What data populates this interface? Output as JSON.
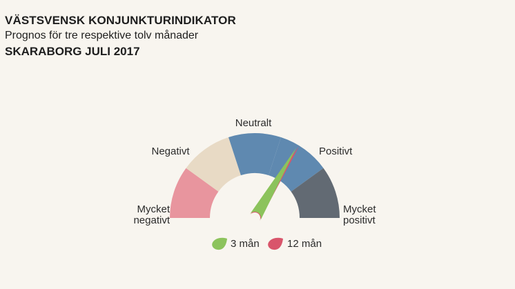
{
  "title": "VÄSTSVENSK KONJUNKTURINDIKATOR",
  "subtitle": "Prognos för tre respektive tolv månader",
  "region": "SKARABORG JULI 2017",
  "chart_data": {
    "type": "gauge",
    "segments": [
      {
        "label_lines": [
          "Mycket",
          "negativt"
        ],
        "color": "#e8959e"
      },
      {
        "label_lines": [
          "Negativt"
        ],
        "color": "#e8dac5"
      },
      {
        "label_lines": [
          "Neutralt"
        ],
        "color": "#5f89b0"
      },
      {
        "label_lines": [
          "Positivt"
        ],
        "color": "#5f89b0"
      },
      {
        "label_lines": [
          "Mycket",
          "positivt"
        ],
        "color": "#626a73"
      }
    ],
    "range": [
      0,
      5
    ],
    "needles": [
      {
        "name": "12 mån",
        "value": 3.38,
        "color": "#d9556b"
      },
      {
        "name": "3 mån",
        "value": 3.35,
        "color": "#8cc35c"
      }
    ],
    "legend": [
      {
        "label": "3 mån",
        "color": "#8cc35c"
      },
      {
        "label": "12 mån",
        "color": "#d9556b"
      }
    ]
  }
}
